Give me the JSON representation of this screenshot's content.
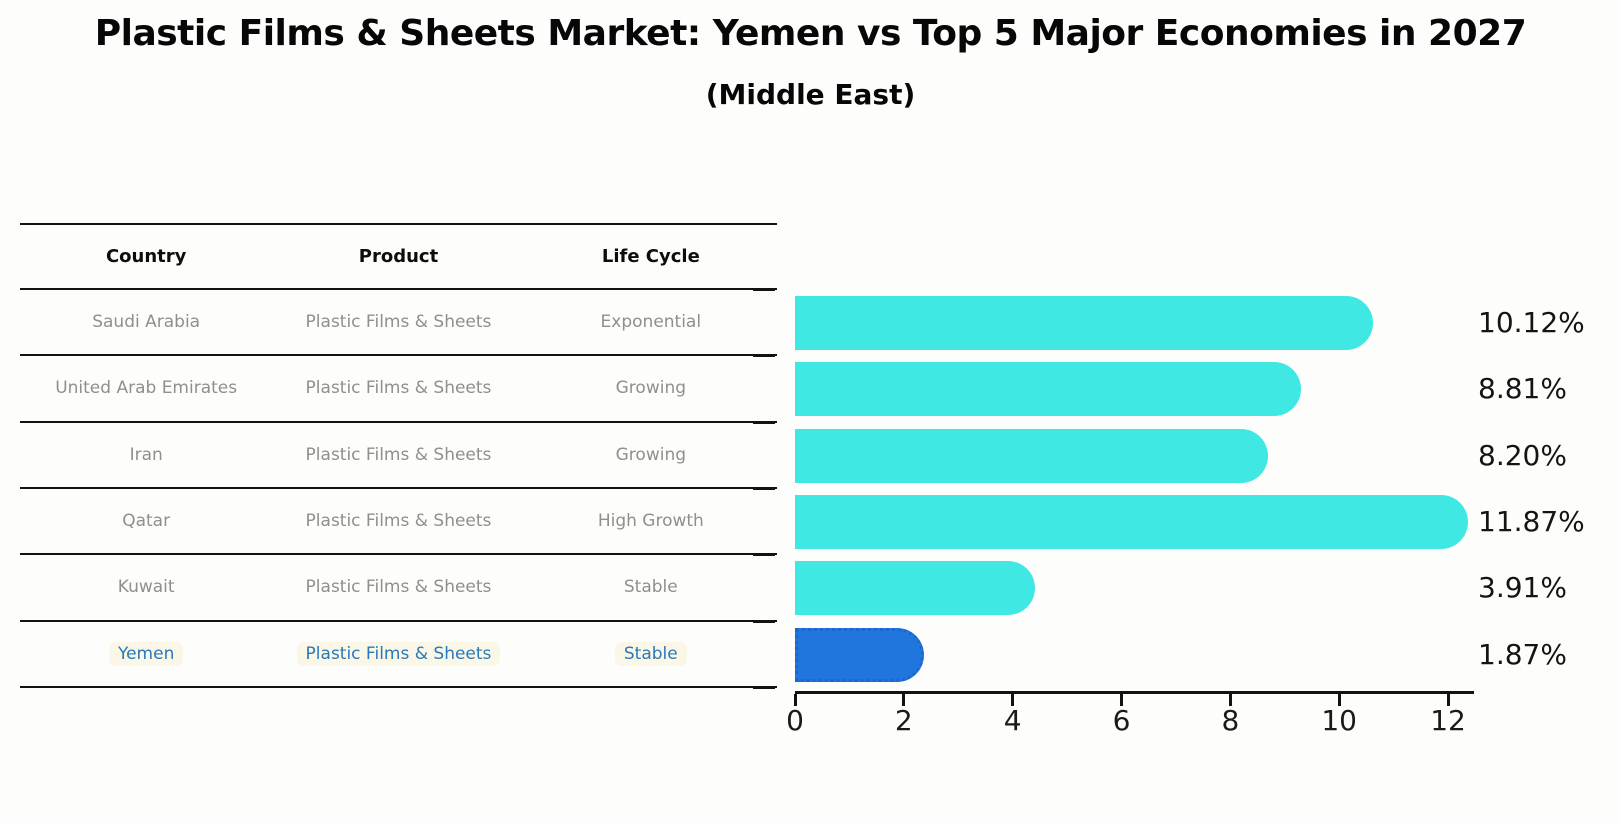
{
  "title": "Plastic Films & Sheets Market: Yemen vs Top 5 Major Economies in 2027",
  "subtitle": "(Middle East)",
  "colors": {
    "bar_default": "#3fe8e2",
    "bar_highlight": "#2176de",
    "bar_highlight_border": "#1e66cf",
    "highlight_text": "#2878be",
    "row_text": "#8f8f8f",
    "header_text": "#0d0d0d",
    "axis": "#121212",
    "value_text": "#141414",
    "page_bg": "#fdfdfb"
  },
  "table": {
    "headers": [
      "Country",
      "Product",
      "Life Cycle"
    ],
    "rows": [
      {
        "country": "Saudi Arabia",
        "product": "Plastic Films & Sheets",
        "life_cycle": "Exponential",
        "highlight": false
      },
      {
        "country": "United Arab Emirates",
        "product": "Plastic Films & Sheets",
        "life_cycle": "Growing",
        "highlight": false
      },
      {
        "country": "Iran",
        "product": "Plastic Films & Sheets",
        "life_cycle": "Growing",
        "highlight": false
      },
      {
        "country": "Qatar",
        "product": "Plastic Films & Sheets",
        "life_cycle": "High Growth",
        "highlight": false
      },
      {
        "country": "Kuwait",
        "product": "Plastic Films & Sheets",
        "life_cycle": "Stable",
        "highlight": false
      },
      {
        "country": "Yemen",
        "product": "Plastic Films & Sheets",
        "life_cycle": "Stable",
        "highlight": true
      }
    ]
  },
  "chart_data": {
    "type": "bar",
    "orientation": "horizontal",
    "title": "Plastic Films & Sheets Market: Yemen vs Top 5 Major Economies in 2027 (Middle East)",
    "categories": [
      "Saudi Arabia",
      "United Arab Emirates",
      "Iran",
      "Qatar",
      "Kuwait",
      "Yemen"
    ],
    "values": [
      10.12,
      8.81,
      8.2,
      11.87,
      3.91,
      1.87
    ],
    "value_labels": [
      "10.12%",
      "8.81%",
      "8.20%",
      "11.87%",
      "3.91%",
      "1.87%"
    ],
    "highlight_category": "Yemen",
    "x_ticks": [
      0,
      2,
      4,
      6,
      8,
      10,
      12
    ],
    "xlim": [
      0,
      12.4
    ],
    "grid": false,
    "legend": false
  }
}
